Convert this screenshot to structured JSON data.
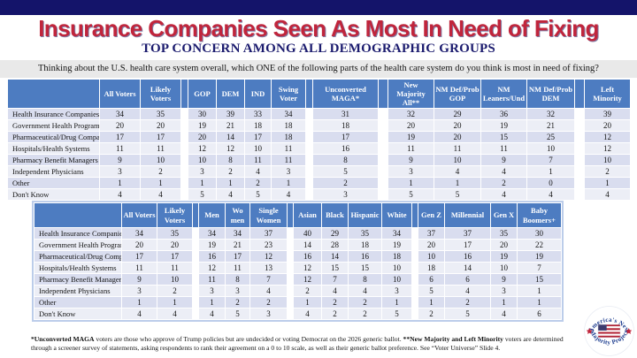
{
  "header": {
    "title": "Insurance Companies Seen As Most In Need of Fixing",
    "subtitle": "TOP CONCERN AMONG ALL DEMOGRAPHIC GROUPS",
    "question": "Thinking about the U.S. health care system overall, which ONE of the following parts of the health care system do you think is most in need of fixing?"
  },
  "colors": {
    "top_bar_navy": "#14146a",
    "title_red": "#c0253c",
    "subtitle_navy": "#1b1b6e",
    "table_header_blue": "#4d7cc1",
    "row_dark": "#d9ddef",
    "row_light": "#eceef6",
    "question_bar_gray": "#e9e9e9"
  },
  "table1": {
    "headers": [
      "All Voters",
      "Likely Voters",
      null,
      "GOP",
      "DEM",
      "IND",
      "Swing Voter",
      null,
      "Unconverted MAGA*",
      null,
      "New Majority All**",
      "NM Def/Prob GOP",
      "NM Leaners/Und",
      "NM Def/Prob DEM",
      null,
      "Left Minority"
    ],
    "rows": [
      {
        "label": "Health Insurance Companies",
        "values": [
          34,
          35,
          null,
          30,
          39,
          33,
          34,
          null,
          31,
          null,
          32,
          29,
          36,
          32,
          null,
          39
        ]
      },
      {
        "label": "Government Health Programs",
        "values": [
          20,
          20,
          null,
          19,
          21,
          18,
          18,
          null,
          18,
          null,
          20,
          20,
          19,
          21,
          null,
          20
        ]
      },
      {
        "label": "Pharmaceutical/Drug Companies",
        "values": [
          17,
          17,
          null,
          20,
          14,
          17,
          18,
          null,
          17,
          null,
          19,
          20,
          15,
          25,
          null,
          12
        ]
      },
      {
        "label": "Hospitals/Health Systems",
        "values": [
          11,
          11,
          null,
          12,
          12,
          10,
          11,
          null,
          16,
          null,
          11,
          11,
          11,
          10,
          null,
          12
        ]
      },
      {
        "label": "Pharmacy Benefit Managers",
        "values": [
          9,
          10,
          null,
          10,
          8,
          11,
          11,
          null,
          8,
          null,
          9,
          10,
          9,
          7,
          null,
          10
        ]
      },
      {
        "label": "Independent Physicians",
        "values": [
          3,
          2,
          null,
          3,
          2,
          4,
          3,
          null,
          5,
          null,
          3,
          4,
          4,
          1,
          null,
          2
        ]
      },
      {
        "label": "Other",
        "values": [
          1,
          1,
          null,
          1,
          1,
          2,
          1,
          null,
          2,
          null,
          1,
          1,
          2,
          0,
          null,
          1
        ]
      },
      {
        "label": "Don't Know",
        "values": [
          4,
          4,
          null,
          5,
          4,
          5,
          4,
          null,
          3,
          null,
          5,
          5,
          4,
          4,
          null,
          4
        ]
      }
    ]
  },
  "table2": {
    "headers": [
      "All Voters",
      "Likely Voters",
      null,
      "Men",
      "Wo men",
      "Single Women",
      null,
      "Asian",
      "Black",
      "Hispanic",
      "White",
      null,
      "Gen Z",
      "Millennial",
      "Gen X",
      "Baby Boomers+"
    ],
    "rows": [
      {
        "label": "Health Insurance Companies",
        "values": [
          34,
          35,
          null,
          34,
          34,
          37,
          null,
          40,
          29,
          35,
          34,
          null,
          37,
          37,
          35,
          30
        ]
      },
      {
        "label": "Government Health Programs",
        "values": [
          20,
          20,
          null,
          19,
          21,
          23,
          null,
          14,
          28,
          18,
          19,
          null,
          20,
          17,
          20,
          22
        ]
      },
      {
        "label": "Pharmaceutical/Drug Companies",
        "values": [
          17,
          17,
          null,
          16,
          17,
          12,
          null,
          16,
          14,
          16,
          18,
          null,
          10,
          16,
          19,
          19
        ]
      },
      {
        "label": "Hospitals/Health Systems",
        "values": [
          11,
          11,
          null,
          12,
          11,
          13,
          null,
          12,
          15,
          15,
          10,
          null,
          18,
          14,
          10,
          7
        ]
      },
      {
        "label": "Pharmacy Benefit Managers",
        "values": [
          9,
          10,
          null,
          11,
          8,
          7,
          null,
          12,
          7,
          8,
          10,
          null,
          6,
          6,
          9,
          15
        ]
      },
      {
        "label": "Independent Physicians",
        "values": [
          3,
          2,
          null,
          3,
          3,
          4,
          null,
          2,
          4,
          4,
          3,
          null,
          5,
          4,
          3,
          1
        ]
      },
      {
        "label": "Other",
        "values": [
          1,
          1,
          null,
          1,
          2,
          2,
          null,
          1,
          2,
          2,
          1,
          null,
          1,
          2,
          1,
          1
        ]
      },
      {
        "label": "Don't Know",
        "values": [
          4,
          4,
          null,
          4,
          5,
          3,
          null,
          4,
          2,
          2,
          5,
          null,
          2,
          5,
          4,
          6
        ]
      }
    ]
  },
  "footnote": {
    "bold1": "*Unconverted MAGA",
    "text1": " voters are those who approve of Trump policies but are undecided or voting Democrat on the 2026 generic ballot. ",
    "bold2": "**New Majority and Left Minority",
    "text2": " voters are determined through a screener survey of statements, asking respondents to rank their agreement on a 0 to 10 scale, as well as their generic ballot preference. See “Voter Universe” Slide 4."
  },
  "logo": {
    "arc_top": "America's New",
    "arc_bottom": "Majority Project"
  }
}
